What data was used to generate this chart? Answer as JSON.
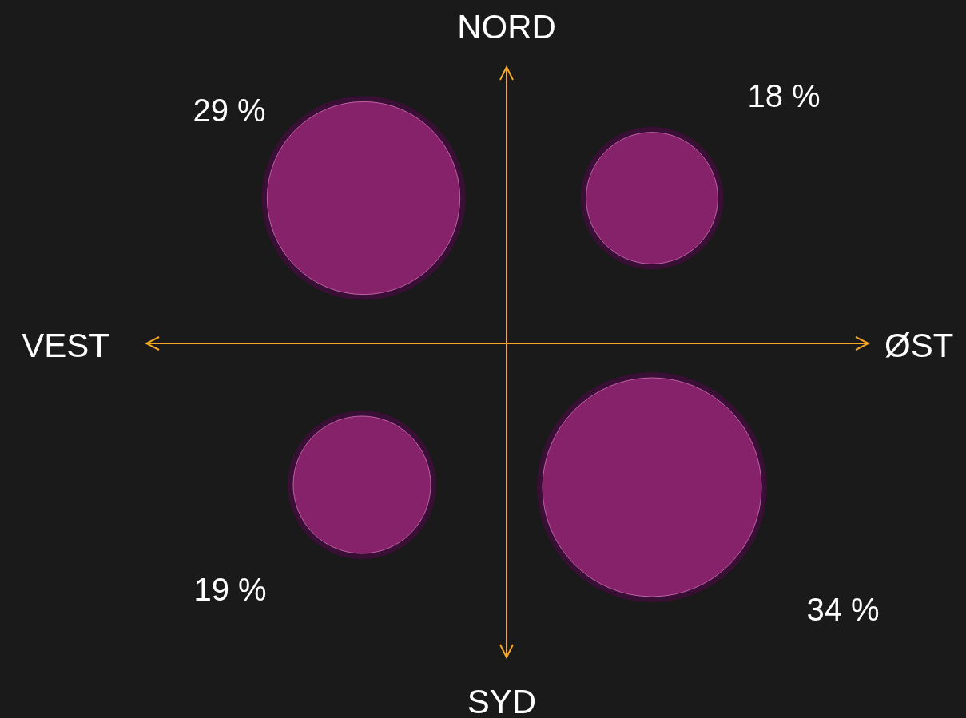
{
  "chart_data": {
    "type": "other",
    "categories": [
      null,
      null,
      null,
      null
    ],
    "values": [
      29,
      18,
      19,
      34
    ],
    "value_labels": [
      "29 %",
      "18 %",
      "19 %",
      "34 %"
    ],
    "color": "#86226a",
    "annotations": [
      "NORD",
      "ØST",
      "SYD",
      "VEST"
    ]
  }
}
